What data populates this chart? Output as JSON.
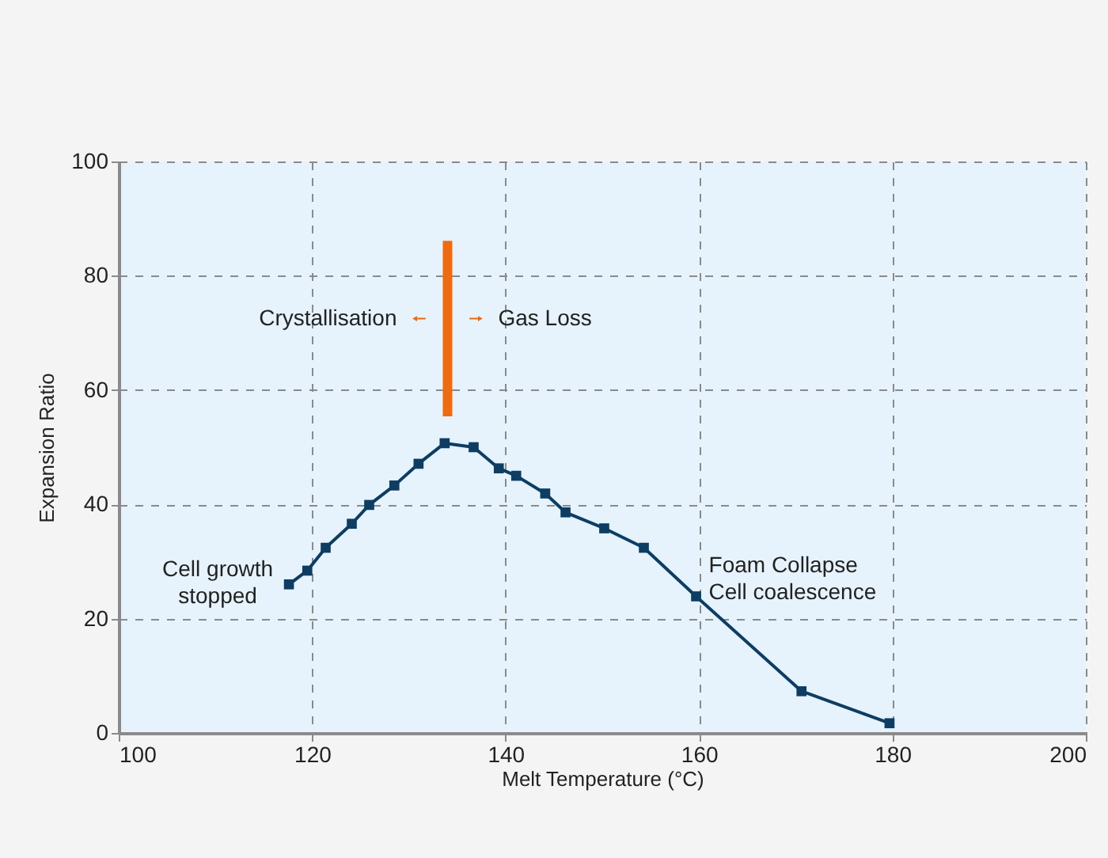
{
  "chart_data": {
    "type": "line",
    "xlabel": "Melt Temperature (°C)",
    "ylabel": "Expansion Ratio",
    "xlim": [
      100,
      200
    ],
    "xticks": [
      100,
      120,
      140,
      160,
      180,
      200
    ],
    "ylim": [
      0,
      100
    ],
    "yticks": [
      0,
      20,
      40,
      60,
      80,
      100
    ],
    "grid": true,
    "marker": "square",
    "line_style": "solid",
    "series": [
      {
        "color": "#0d3d63",
        "x": [
          117.6,
          119.5,
          121.4,
          124.1,
          125.9,
          128.5,
          131.0,
          133.7,
          136.7,
          139.3,
          141.1,
          144.1,
          146.2,
          150.2,
          154.3,
          159.7,
          170.6,
          179.7
        ],
        "values": [
          26.0,
          28.4,
          32.4,
          36.6,
          39.9,
          43.3,
          47.1,
          50.7,
          50.0,
          46.3,
          45.0,
          41.9,
          38.6,
          35.8,
          32.4,
          23.9,
          7.3,
          1.7
        ]
      },
      {
        "color": "#f06a0f",
        "marker": "none",
        "x": [
          134,
          134
        ],
        "values": [
          55.4,
          86.1
        ]
      }
    ],
    "annotations": [
      {
        "text": "Crystallisation",
        "x": 134,
        "y": 72.5
      },
      {
        "text": "Gas Loss",
        "x": 134,
        "y": 72.5
      },
      {
        "text": "Cell growth\nstopped",
        "x": 117.6,
        "y": 26.0
      },
      {
        "text": "Foam Collapse\nCell coalescence",
        "x": 159.7,
        "y": 23.9
      }
    ]
  }
}
